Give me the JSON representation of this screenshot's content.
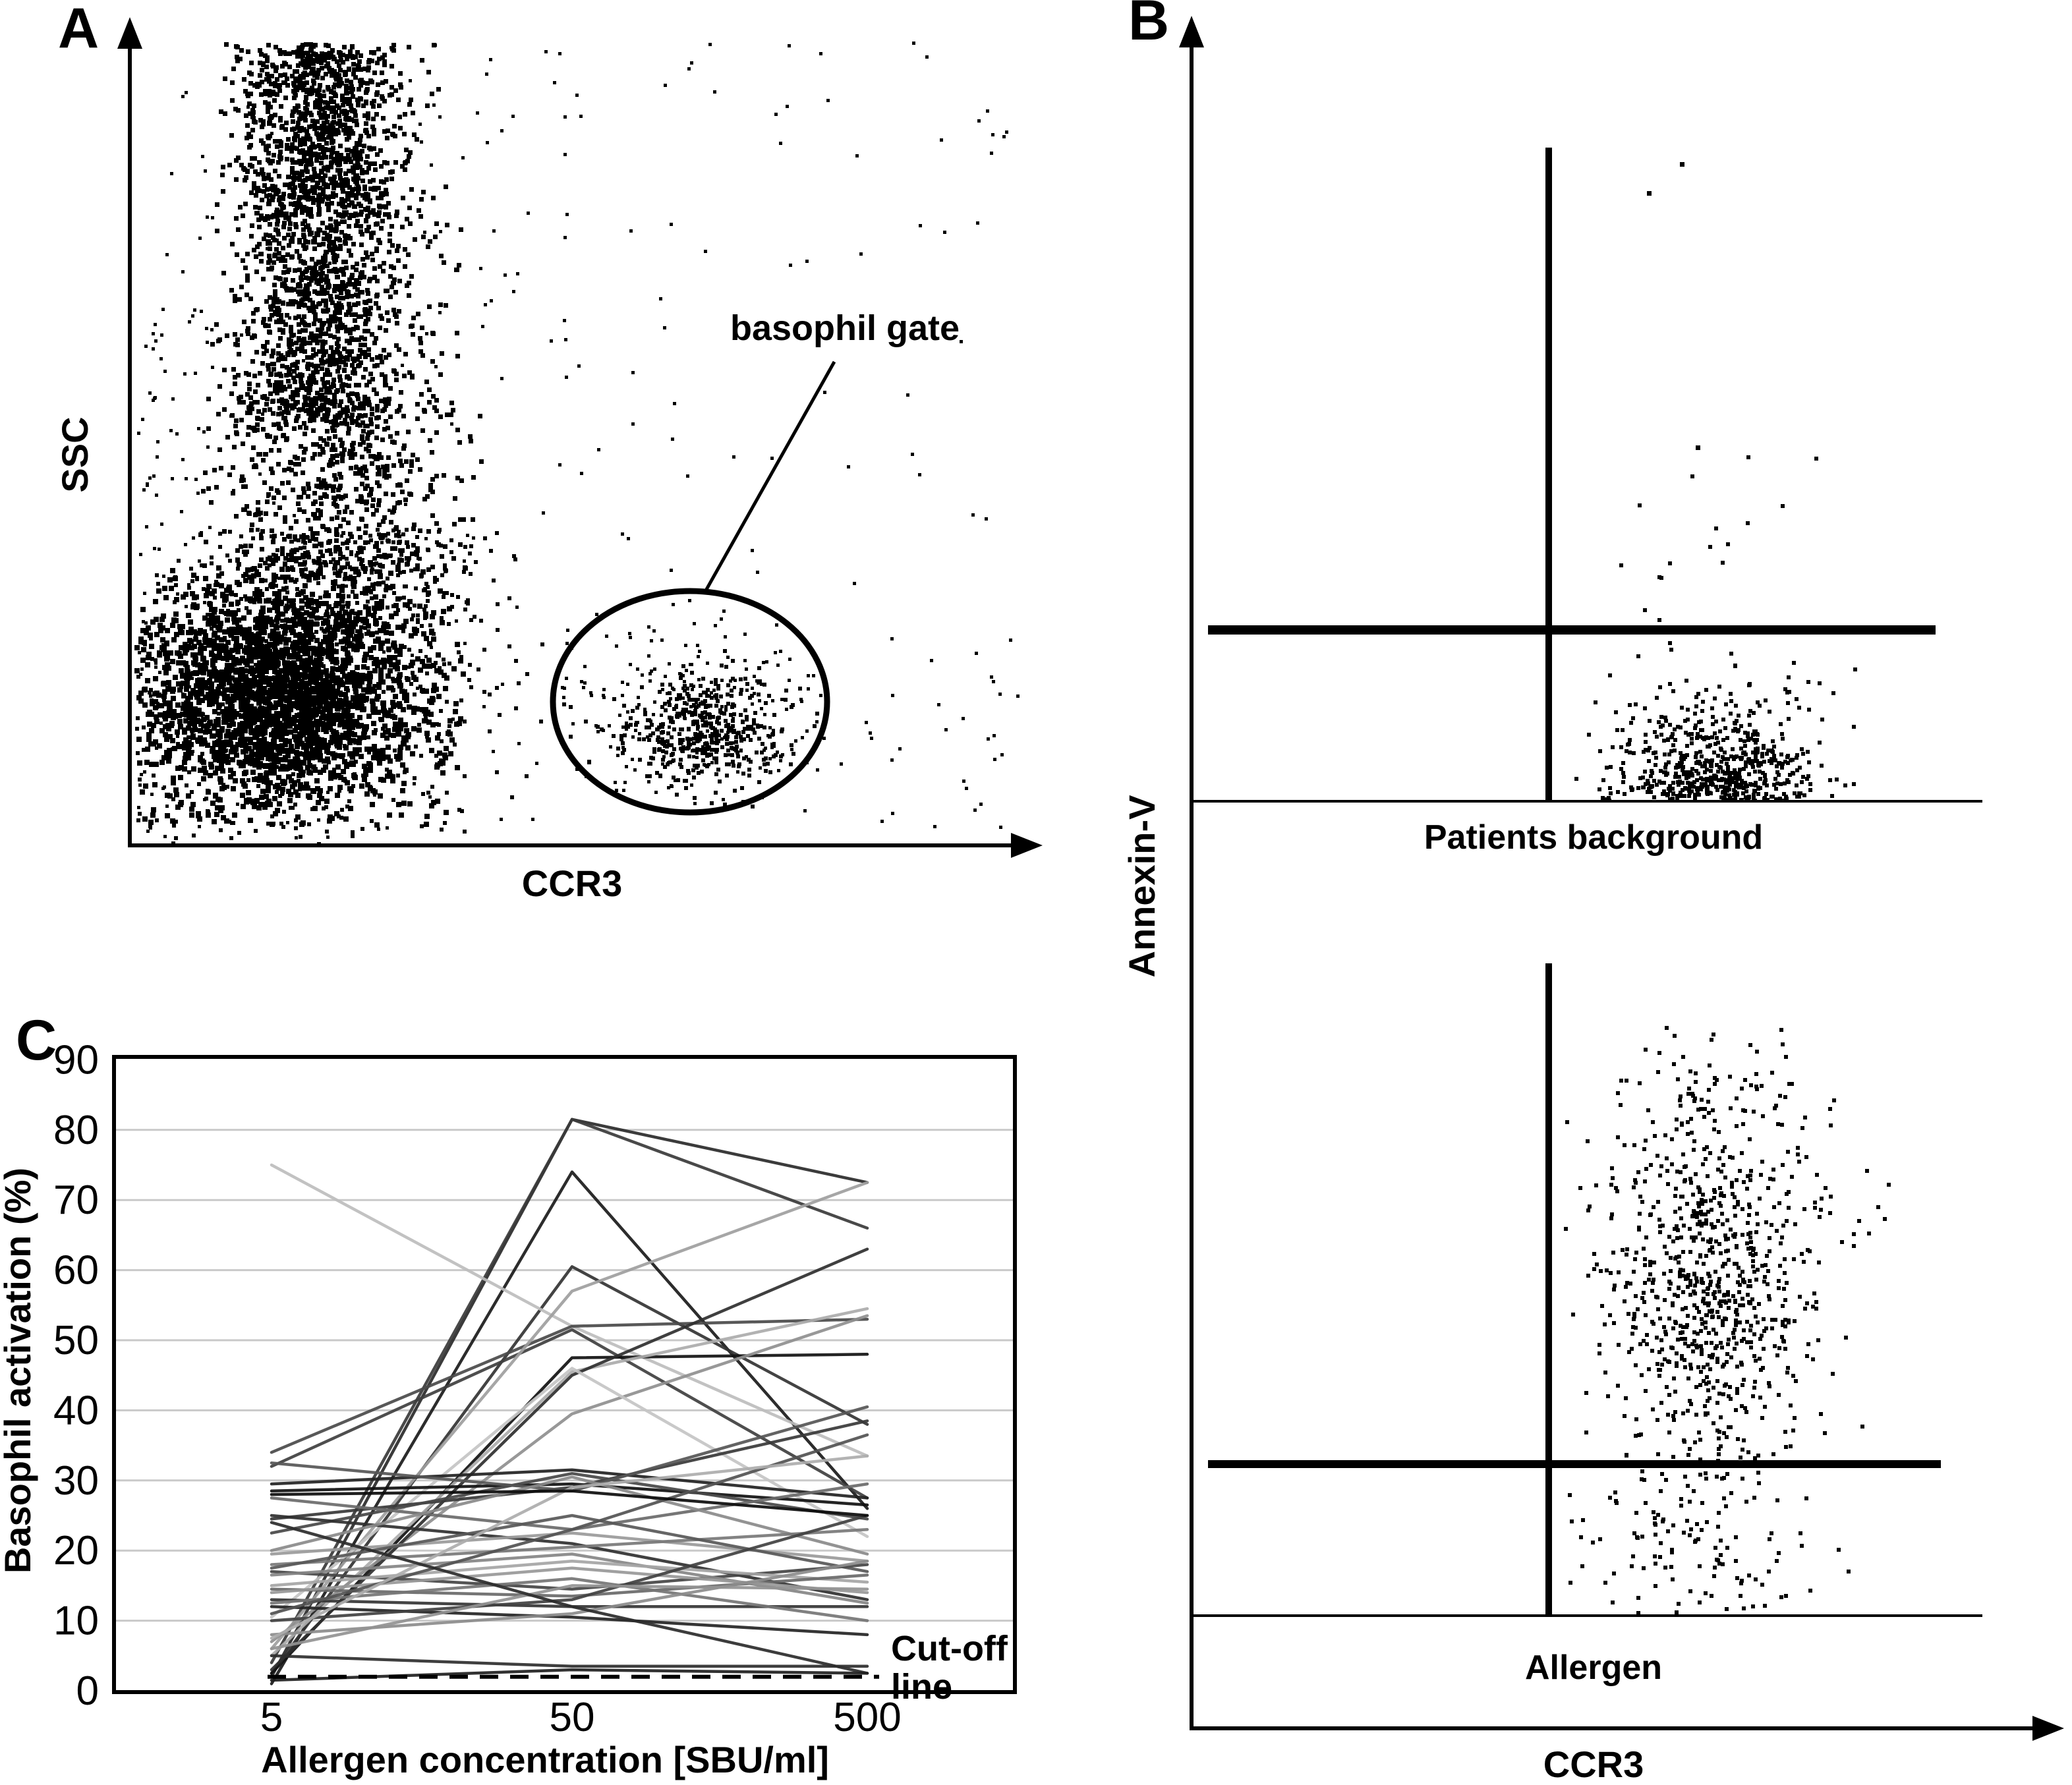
{
  "panelA": {
    "label": "A",
    "xlabel": "CCR3",
    "ylabel": "SSC",
    "gate_label": "basophil gate"
  },
  "panelB": {
    "label": "B",
    "xlabel": "CCR3",
    "ylabel": "Annexin-V",
    "top_title": "Patients background",
    "bottom_title": "Allergen"
  },
  "panelC": {
    "label": "C"
  },
  "colors": {
    "ink": "#000000",
    "gridline": "#c9c9c9"
  },
  "chart_data": [
    {
      "panel": "A",
      "type": "scatter",
      "xlabel": "CCR3",
      "ylabel": "SSC",
      "annotation": "basophil gate",
      "gate": {
        "cx": 1047,
        "cy": 1065,
        "rx": 208,
        "ry": 168
      },
      "clusters": [
        {
          "name": "upper-band",
          "n": 650,
          "size": 7,
          "x": {
            "d": "g",
            "mu": 480,
            "s": 70,
            "min": 330,
            "max": 680
          },
          "y": {
            "d": "u",
            "min": 62,
            "max": 300
          }
        },
        {
          "name": "mid-band",
          "n": 750,
          "size": 7,
          "x": {
            "d": "g",
            "mu": 490,
            "s": 82,
            "min": 318,
            "max": 700
          },
          "y": {
            "d": "u",
            "min": 280,
            "max": 620
          }
        },
        {
          "name": "low-band",
          "n": 650,
          "size": 7,
          "x": {
            "d": "g",
            "mu": 500,
            "s": 95,
            "min": 300,
            "max": 730
          },
          "y": {
            "d": "u",
            "min": 600,
            "max": 870
          }
        },
        {
          "name": "band-core",
          "n": 850,
          "size": 7,
          "x": {
            "d": "g",
            "mu": 478,
            "s": 52,
            "min": 340,
            "max": 640
          },
          "y": {
            "d": "u",
            "min": 75,
            "max": 640
          }
        },
        {
          "name": "band-tail",
          "n": 320,
          "size": 6,
          "x": {
            "d": "g",
            "mu": 520,
            "s": 120,
            "min": 280,
            "max": 780
          },
          "y": {
            "d": "u",
            "min": 800,
            "max": 960
          }
        },
        {
          "name": "main-blob",
          "n": 2600,
          "size": 8,
          "x": {
            "d": "g",
            "mu": 420,
            "s": 115,
            "min": 204,
            "max": 700
          },
          "y": {
            "d": "g",
            "mu": 1050,
            "s": 90,
            "min": 858,
            "max": 1248
          }
        },
        {
          "name": "blob-spray",
          "n": 500,
          "size": 6,
          "x": {
            "d": "g",
            "mu": 430,
            "s": 170,
            "min": 204,
            "max": 870
          },
          "y": {
            "d": "g",
            "mu": 1070,
            "s": 130,
            "min": 840,
            "max": 1278
          }
        },
        {
          "name": "gate-core",
          "n": 430,
          "size": 6,
          "x": {
            "d": "g",
            "mu": 1062,
            "s": 58,
            "min": 880,
            "max": 1240
          },
          "y": {
            "d": "g",
            "mu": 1112,
            "s": 44,
            "min": 930,
            "max": 1225
          }
        },
        {
          "name": "gate-halo",
          "n": 230,
          "size": 5,
          "x": {
            "d": "g",
            "mu": 1047,
            "s": 120,
            "min": 845,
            "max": 1255
          },
          "y": {
            "d": "g",
            "mu": 1080,
            "s": 80,
            "min": 905,
            "max": 1230
          }
        },
        {
          "name": "sparse-left",
          "n": 170,
          "size": 5,
          "x": {
            "d": "u",
            "min": 205,
            "max": 880
          },
          "y": {
            "d": "u",
            "min": 62,
            "max": 1275
          }
        },
        {
          "name": "left-strip",
          "n": 90,
          "size": 5,
          "x": {
            "d": "u",
            "min": 205,
            "max": 320
          },
          "y": {
            "d": "u",
            "min": 450,
            "max": 1272
          }
        },
        {
          "name": "sparse-top-right",
          "n": 55,
          "size": 5,
          "x": {
            "d": "u",
            "min": 880,
            "max": 1530
          },
          "y": {
            "d": "u",
            "min": 62,
            "max": 900
          }
        },
        {
          "name": "sparse-bottom-right",
          "n": 30,
          "size": 5,
          "x": {
            "d": "u",
            "min": 1260,
            "max": 1545
          },
          "y": {
            "d": "u",
            "min": 950,
            "max": 1262
          }
        }
      ]
    },
    {
      "panel": "B",
      "type": "scatter",
      "xlabel": "CCR3",
      "ylabel": "Annexin-V",
      "plots": [
        {
          "title": "Patients background",
          "clusters": [
            {
              "name": "negative-cluster",
              "n": 380,
              "size": 6,
              "x": {
                "d": "g",
                "mu": 2600,
                "s": 85,
                "min": 2365,
                "max": 2885
              },
              "y": {
                "d": "hd",
                "base": 1212,
                "s": 95,
                "min": 962
              }
            },
            {
              "name": "negative-core",
              "n": 240,
              "size": 6,
              "x": {
                "d": "g",
                "mu": 2612,
                "s": 60,
                "min": 2400,
                "max": 2820
              },
              "y": {
                "d": "hd",
                "base": 1212,
                "s": 55,
                "min": 1000
              }
            },
            {
              "name": "above-line-sparse",
              "n": 16,
              "size": 6,
              "x": {
                "d": "g",
                "mu": 2585,
                "s": 95,
                "min": 2390,
                "max": 2790
              },
              "y": {
                "d": "u",
                "min": 690,
                "max": 945
              }
            },
            {
              "name": "stray-dots",
              "size": 7,
              "points": [
                [
                  2549,
                  246
                ],
                [
                  2499,
                  290
                ],
                [
                  2573,
                  676
                ]
              ]
            }
          ]
        },
        {
          "title": "Allergen",
          "clusters": [
            {
              "name": "activated-cluster",
              "n": 520,
              "size": 6,
              "x": {
                "d": "g",
                "mu": 2595,
                "s": 95,
                "min": 2368,
                "max": 2890
              },
              "y": {
                "d": "g",
                "mu": 1945,
                "s": 150,
                "min": 1600,
                "max": 2216
              }
            },
            {
              "name": "activated-core",
              "n": 300,
              "size": 6,
              "x": {
                "d": "g",
                "mu": 2590,
                "s": 55,
                "min": 2430,
                "max": 2760
              },
              "y": {
                "d": "g",
                "mu": 1950,
                "s": 170,
                "min": 1620,
                "max": 2216
              }
            },
            {
              "name": "cluster-top-sparse",
              "n": 30,
              "size": 6,
              "x": {
                "d": "g",
                "mu": 2600,
                "s": 90,
                "min": 2420,
                "max": 2800
              },
              "y": {
                "d": "u",
                "min": 1555,
                "max": 1690
              }
            },
            {
              "name": "below-line",
              "n": 130,
              "size": 6,
              "x": {
                "d": "g",
                "mu": 2560,
                "s": 95,
                "min": 2372,
                "max": 2825
              },
              "y": {
                "d": "u",
                "min": 2230,
                "max": 2445
              }
            }
          ]
        }
      ]
    },
    {
      "panel": "C",
      "type": "line",
      "title": "",
      "xlabel": "Allergen concentration [SBU/ml]",
      "ylabel": "Basophil activation (%)",
      "categories": [
        "5",
        "50",
        "500"
      ],
      "ylim": [
        0,
        90
      ],
      "yticks": [
        0,
        10,
        20,
        30,
        40,
        50,
        60,
        70,
        80,
        90
      ],
      "grid": true,
      "legend": "none",
      "cutoff": {
        "value": 2,
        "label": "Cut-off line",
        "label_lines": [
          "Cut-off",
          "line"
        ],
        "style": "dashed"
      },
      "series": [
        {
          "values": [
            2,
            81.5,
            72.5
          ],
          "color": "#2a2a2a"
        },
        {
          "values": [
            4,
            81.5,
            66
          ],
          "color": "#3a3a3a"
        },
        {
          "values": [
            1,
            74,
            26
          ],
          "color": "#1a1a1a"
        },
        {
          "values": [
            2.5,
            60.5,
            38
          ],
          "color": "#333333"
        },
        {
          "values": [
            75,
            52,
            33.5
          ],
          "color": "#bdbdbd"
        },
        {
          "values": [
            34,
            52,
            53
          ],
          "color": "#4a4a4a"
        },
        {
          "values": [
            32,
            51.5,
            27.5
          ],
          "color": "#3f3f3f"
        },
        {
          "values": [
            6,
            57,
            72.5
          ],
          "color": "#9e9e9e"
        },
        {
          "values": [
            2.5,
            47.5,
            48
          ],
          "color": "#111111"
        },
        {
          "values": [
            5,
            45.5,
            54.5
          ],
          "color": "#ababab"
        },
        {
          "values": [
            7,
            39.5,
            53.5
          ],
          "color": "#8f8f8f"
        },
        {
          "values": [
            3,
            45,
            63
          ],
          "color": "#2f2f2f"
        },
        {
          "values": [
            10.5,
            46,
            22
          ],
          "color": "#c4c4c4"
        },
        {
          "values": [
            29.5,
            31.5,
            27.5
          ],
          "color": "#222222"
        },
        {
          "values": [
            28.5,
            29.5,
            26.5
          ],
          "color": "#101010"
        },
        {
          "values": [
            24.5,
            29,
            38.5
          ],
          "color": "#383838"
        },
        {
          "values": [
            22.5,
            31,
            24.5
          ],
          "color": "#484848"
        },
        {
          "values": [
            32.5,
            28.5,
            40.5
          ],
          "color": "#565656"
        },
        {
          "values": [
            27.5,
            23,
            29.5
          ],
          "color": "#6a6a6a"
        },
        {
          "values": [
            25,
            21,
            13
          ],
          "color": "#303030"
        },
        {
          "values": [
            20,
            30.5,
            19.5
          ],
          "color": "#8a8a8a"
        },
        {
          "values": [
            19.5,
            22.5,
            18.5
          ],
          "color": "#9a9a9a"
        },
        {
          "values": [
            18,
            20.5,
            23
          ],
          "color": "#787878"
        },
        {
          "values": [
            17.5,
            25,
            17
          ],
          "color": "#585858"
        },
        {
          "values": [
            17,
            14.5,
            18
          ],
          "color": "#454545"
        },
        {
          "values": [
            16.5,
            19.5,
            12.5
          ],
          "color": "#868686"
        },
        {
          "values": [
            15,
            18.5,
            15.5
          ],
          "color": "#a5a5a5"
        },
        {
          "values": [
            14.5,
            13.5,
            16.5
          ],
          "color": "#696969"
        },
        {
          "values": [
            14,
            17.5,
            14
          ],
          "color": "#989898"
        },
        {
          "values": [
            13,
            12,
            12
          ],
          "color": "#343434"
        },
        {
          "values": [
            12.5,
            16,
            10
          ],
          "color": "#757575"
        },
        {
          "values": [
            12,
            10.5,
            8
          ],
          "color": "#242424"
        },
        {
          "values": [
            11,
            23,
            36.5
          ],
          "color": "#525252"
        },
        {
          "values": [
            10,
            13,
            25
          ],
          "color": "#414141"
        },
        {
          "values": [
            8,
            11,
            18.5
          ],
          "color": "#8c8c8c"
        },
        {
          "values": [
            7.5,
            29,
            33.5
          ],
          "color": "#adadad"
        },
        {
          "values": [
            6,
            15,
            14.5
          ],
          "color": "#939393"
        },
        {
          "values": [
            24,
            12,
            2.5
          ],
          "color": "#2b2b2b"
        },
        {
          "values": [
            5,
            3.5,
            3.5
          ],
          "color": "#2e2e2e"
        },
        {
          "values": [
            1.5,
            3,
            2.5
          ],
          "color": "#1f1f1f"
        },
        {
          "values": [
            28,
            28.5,
            25
          ],
          "color": "#0c0c0c"
        }
      ]
    }
  ]
}
